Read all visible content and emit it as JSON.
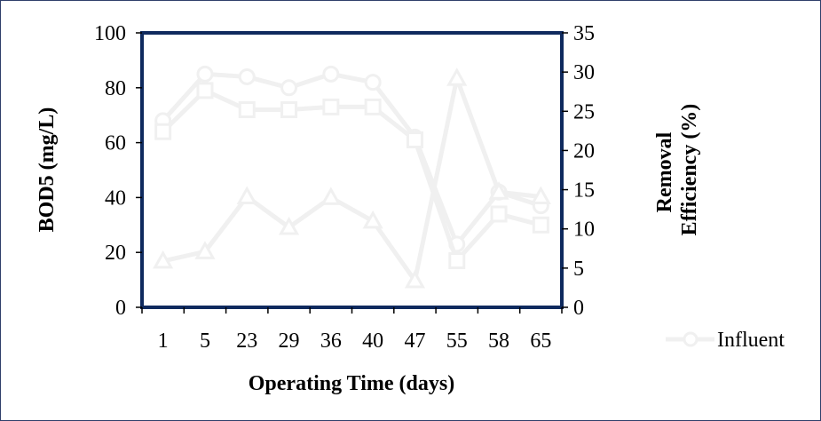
{
  "chart_data": {
    "type": "line",
    "categories": [
      "1",
      "5",
      "23",
      "29",
      "36",
      "40",
      "47",
      "55",
      "58",
      "65"
    ],
    "xlabel": "Operating Time (days)",
    "ylabel": "BOD5 (mg/L)",
    "ylabel_right_lines": [
      "Removal",
      "Efficiency (%)"
    ],
    "ylim": [
      0,
      100
    ],
    "yticks": [
      0,
      20,
      40,
      60,
      80,
      100
    ],
    "y2lim": [
      0,
      35
    ],
    "y2ticks": [
      0,
      5,
      10,
      15,
      20,
      25,
      30,
      35
    ],
    "grid": false,
    "legend_position": "right",
    "series": [
      {
        "name": "Influent",
        "axis": "left",
        "marker": "circle",
        "values": [
          68,
          85,
          84,
          80,
          85,
          82,
          62,
          23,
          42,
          37
        ]
      },
      {
        "axis": "left",
        "marker": "square",
        "values": [
          64,
          79,
          72,
          72,
          73,
          73,
          61,
          17,
          34,
          30
        ]
      },
      {
        "axis": "right",
        "marker": "triangle",
        "values": [
          5.9,
          7.1,
          14.1,
          10.2,
          14.0,
          11.0,
          3.4,
          29.2,
          14.7,
          14.1
        ]
      }
    ],
    "colors": {
      "series": "#f0f0f0",
      "plot_border": "#0f2a5e",
      "frame_border": "#2f3f6b"
    }
  }
}
